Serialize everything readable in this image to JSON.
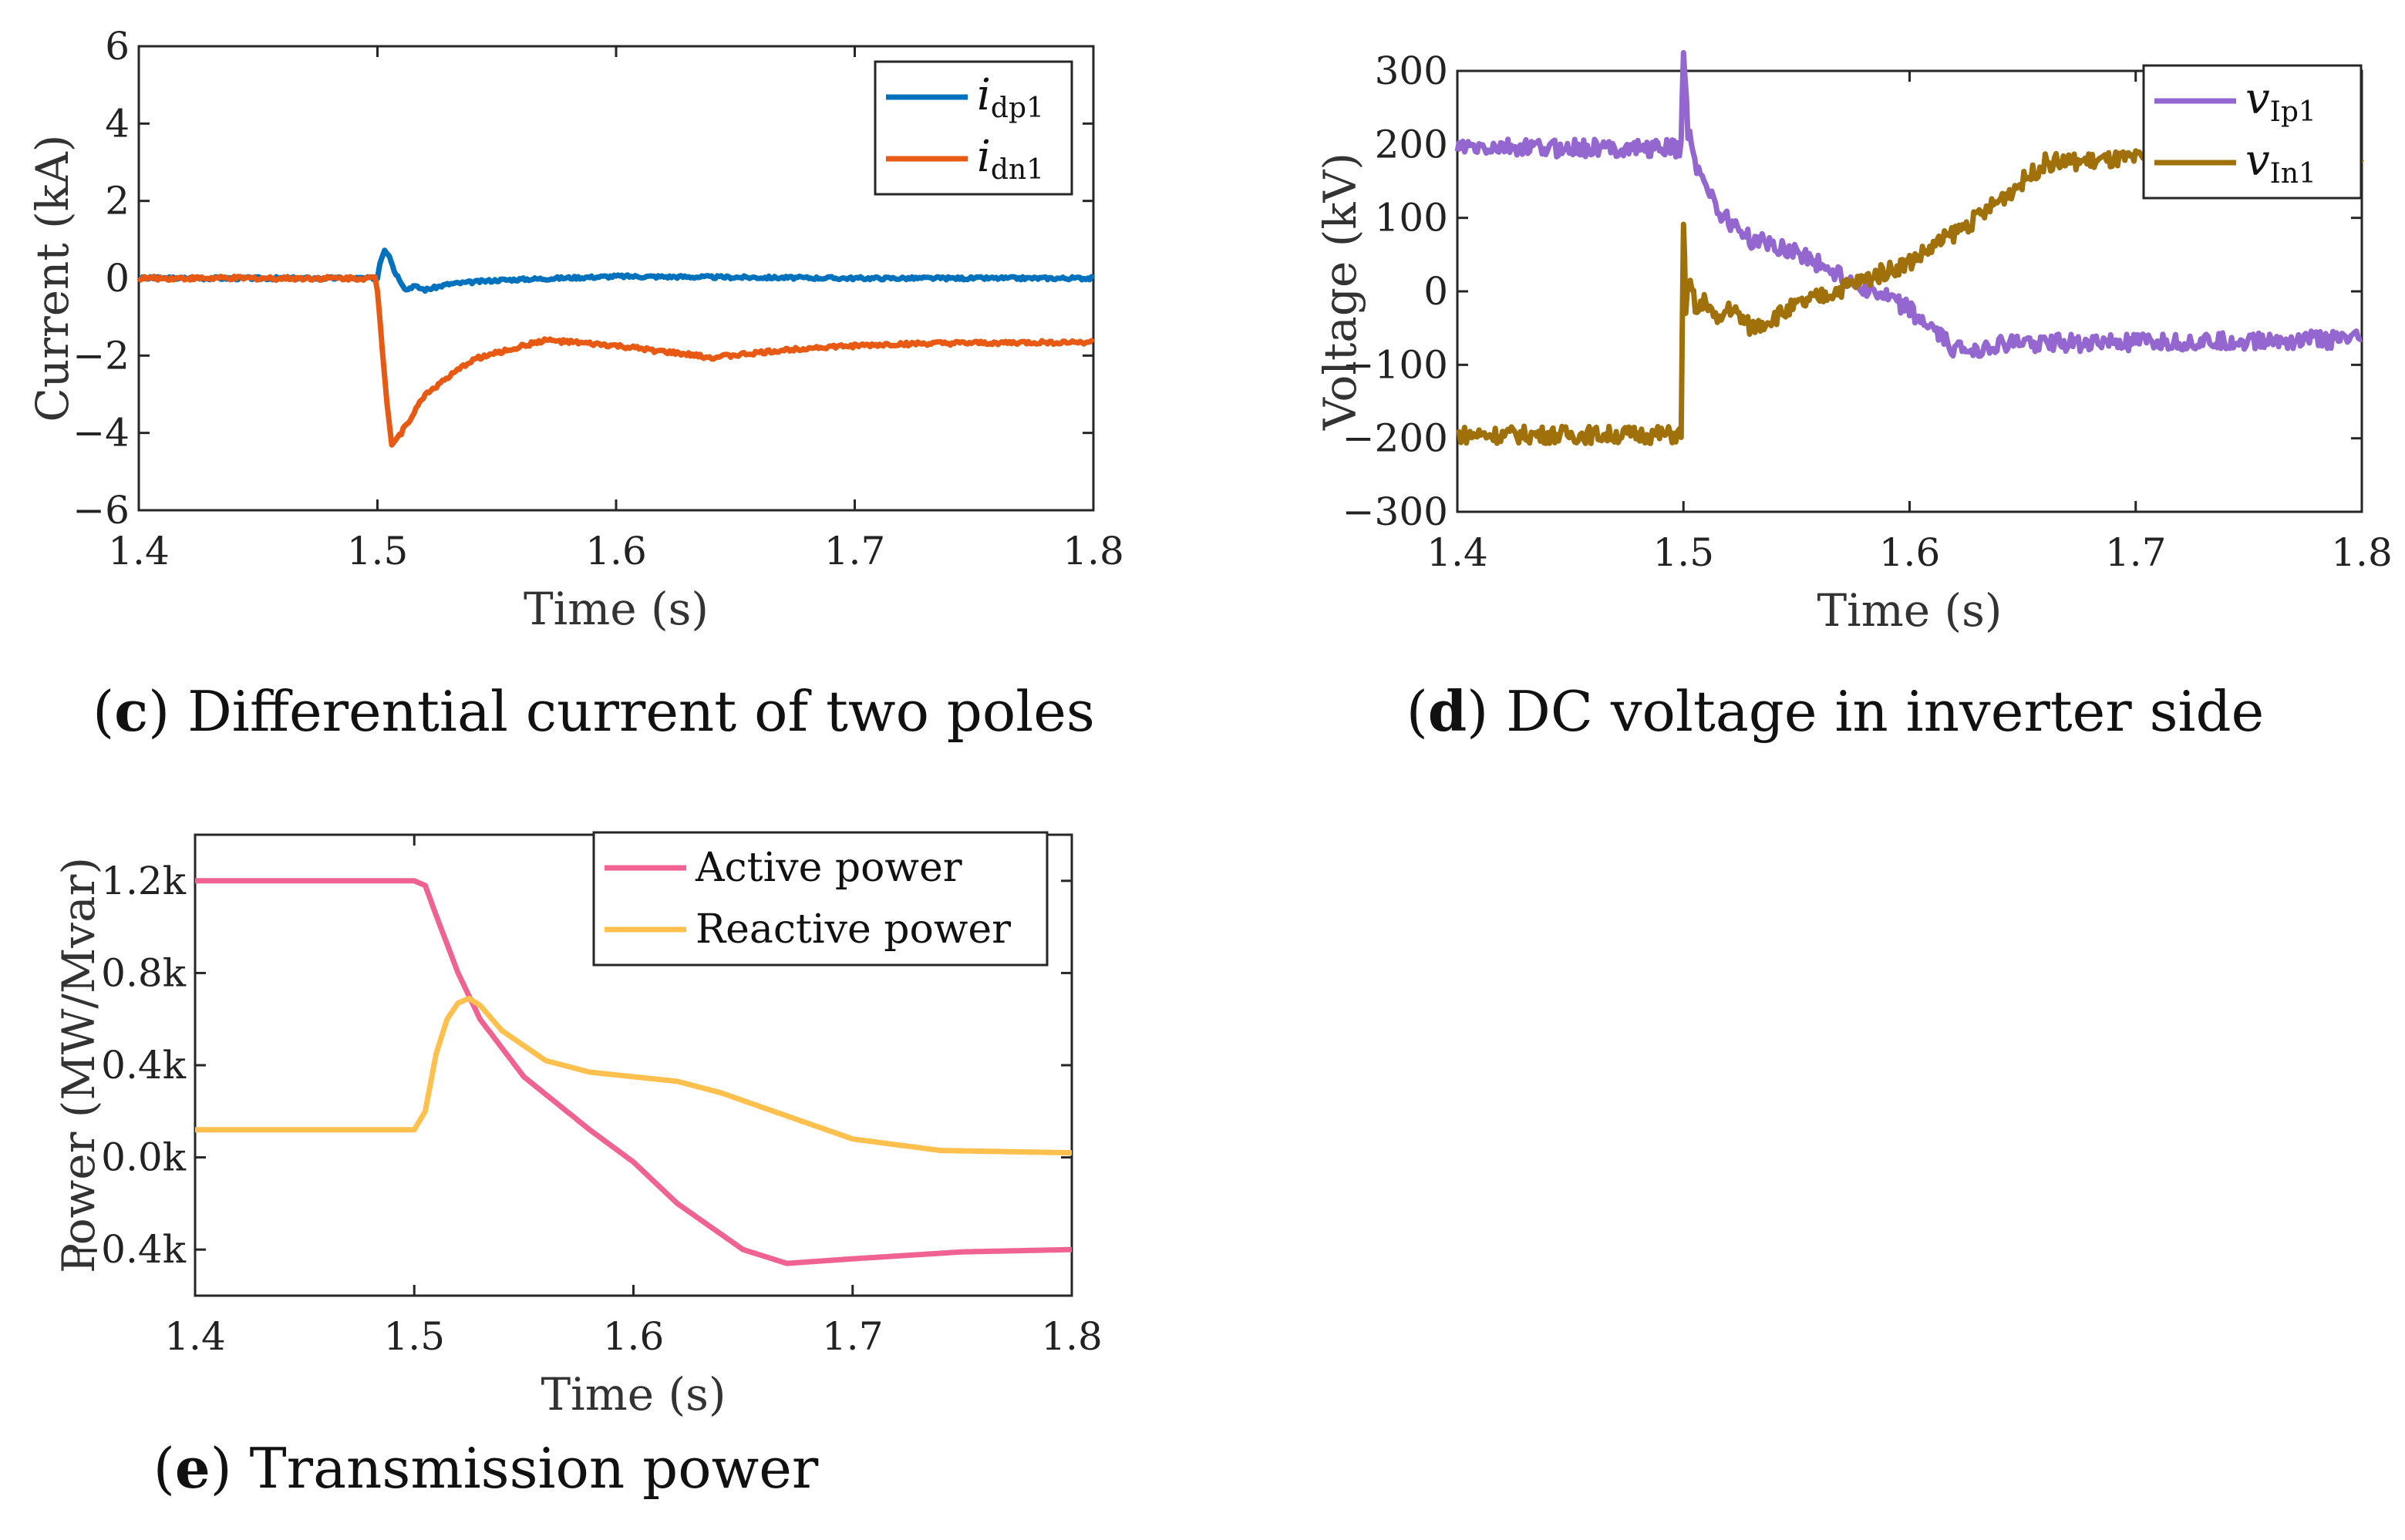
{
  "chart_data": [
    {
      "id": "c",
      "type": "line",
      "caption_letter": "c",
      "caption_text": " Differential current of two poles",
      "xlabel": "Time (s)",
      "ylabel": "Current (kA)",
      "xlim": [
        1.4,
        1.8
      ],
      "ylim": [
        -6,
        6
      ],
      "xticks": [
        "1.4",
        "1.5",
        "1.6",
        "1.7",
        "1.8"
      ],
      "yticks": [
        "6",
        "4",
        "2",
        "0",
        "−2",
        "−4",
        "−6"
      ],
      "legend_position": "top-right",
      "series": [
        {
          "name": "i_dp1",
          "legend_main": "i",
          "legend_sub": "dp1",
          "color": "#0072BD",
          "x": [
            1.4,
            1.5,
            1.501,
            1.503,
            1.505,
            1.507,
            1.51,
            1.512,
            1.515,
            1.52,
            1.53,
            1.55,
            1.6,
            1.7,
            1.8
          ],
          "y": [
            0,
            0,
            0.4,
            0.75,
            0.6,
            0.2,
            -0.1,
            -0.3,
            -0.2,
            -0.3,
            -0.15,
            -0.05,
            0.05,
            0.0,
            0.0
          ],
          "noise": 0.04
        },
        {
          "name": "i_dn1",
          "legend_main": "i",
          "legend_sub": "dn1",
          "color": "#E85A13",
          "x": [
            1.4,
            1.499,
            1.5,
            1.502,
            1.504,
            1.506,
            1.51,
            1.52,
            1.54,
            1.57,
            1.6,
            1.64,
            1.68,
            1.72,
            1.8
          ],
          "y": [
            0,
            0,
            -0.3,
            -1.8,
            -3.2,
            -4.3,
            -4.0,
            -3.0,
            -2.1,
            -1.6,
            -1.75,
            -2.05,
            -1.8,
            -1.7,
            -1.65
          ],
          "noise": 0.05
        }
      ]
    },
    {
      "id": "d",
      "type": "line",
      "caption_letter": "d",
      "caption_text": " DC voltage in inverter side",
      "xlabel": "Time (s)",
      "ylabel": "Voltage (kV)",
      "xlim": [
        1.4,
        1.8
      ],
      "ylim": [
        -300,
        300
      ],
      "xticks": [
        "1.4",
        "1.5",
        "1.6",
        "1.7",
        "1.8"
      ],
      "yticks": [
        "300",
        "200",
        "100",
        "0",
        "−100",
        "−200",
        "−300"
      ],
      "legend_position": "top-right",
      "series": [
        {
          "name": "v_Ip1",
          "legend_main": "v",
          "legend_sub": "Ip1",
          "color": "#9467D0",
          "x": [
            1.4,
            1.499,
            1.5,
            1.502,
            1.505,
            1.51,
            1.515,
            1.52,
            1.53,
            1.55,
            1.57,
            1.6,
            1.62,
            1.65,
            1.7,
            1.8
          ],
          "y": [
            195,
            195,
            330,
            220,
            175,
            150,
            110,
            95,
            70,
            55,
            20,
            -25,
            -80,
            -70,
            -70,
            -65
          ],
          "noise": 12
        },
        {
          "name": "v_In1",
          "legend_main": "v",
          "legend_sub": "In1",
          "color": "#A0700A",
          "x": [
            1.4,
            1.499,
            1.5,
            1.501,
            1.503,
            1.506,
            1.51,
            1.515,
            1.52,
            1.53,
            1.55,
            1.6,
            1.63,
            1.66,
            1.7,
            1.8
          ],
          "y": [
            -195,
            -195,
            100,
            -20,
            10,
            -30,
            -10,
            -45,
            -20,
            -50,
            -20,
            40,
            100,
            175,
            180,
            180
          ],
          "noise": 12
        }
      ]
    },
    {
      "id": "e",
      "type": "line",
      "caption_letter": "e",
      "caption_text": " Transmission power",
      "xlabel": "Time (s)",
      "ylabel": "Power (MW/Mvar)",
      "xlim": [
        1.4,
        1.8
      ],
      "ylim": [
        -0.6,
        1.4
      ],
      "xticks": [
        "1.4",
        "1.5",
        "1.6",
        "1.7",
        "1.8"
      ],
      "yticks": [
        "1.2k",
        "0.8k",
        "0.4k",
        "0.0k",
        "−0.4k"
      ],
      "ytick_values": [
        1.2,
        0.8,
        0.4,
        0.0,
        -0.4
      ],
      "legend_position": "top-right",
      "series": [
        {
          "name": "Active power",
          "legend_main": "Active power",
          "color": "#F06292",
          "x": [
            1.4,
            1.5,
            1.505,
            1.51,
            1.52,
            1.53,
            1.55,
            1.58,
            1.6,
            1.62,
            1.65,
            1.67,
            1.7,
            1.75,
            1.8
          ],
          "y": [
            1.2,
            1.2,
            1.18,
            1.05,
            0.8,
            0.6,
            0.35,
            0.12,
            -0.02,
            -0.2,
            -0.4,
            -0.46,
            -0.44,
            -0.41,
            -0.4
          ],
          "noise": 0
        },
        {
          "name": "Reactive power",
          "legend_main": "Reactive power",
          "color": "#FFC04D",
          "x": [
            1.4,
            1.5,
            1.505,
            1.51,
            1.515,
            1.52,
            1.525,
            1.53,
            1.54,
            1.56,
            1.58,
            1.6,
            1.62,
            1.64,
            1.67,
            1.7,
            1.74,
            1.8
          ],
          "y": [
            0.12,
            0.12,
            0.2,
            0.45,
            0.6,
            0.67,
            0.69,
            0.66,
            0.55,
            0.42,
            0.37,
            0.35,
            0.33,
            0.28,
            0.18,
            0.08,
            0.03,
            0.02
          ],
          "noise": 0
        }
      ]
    }
  ]
}
